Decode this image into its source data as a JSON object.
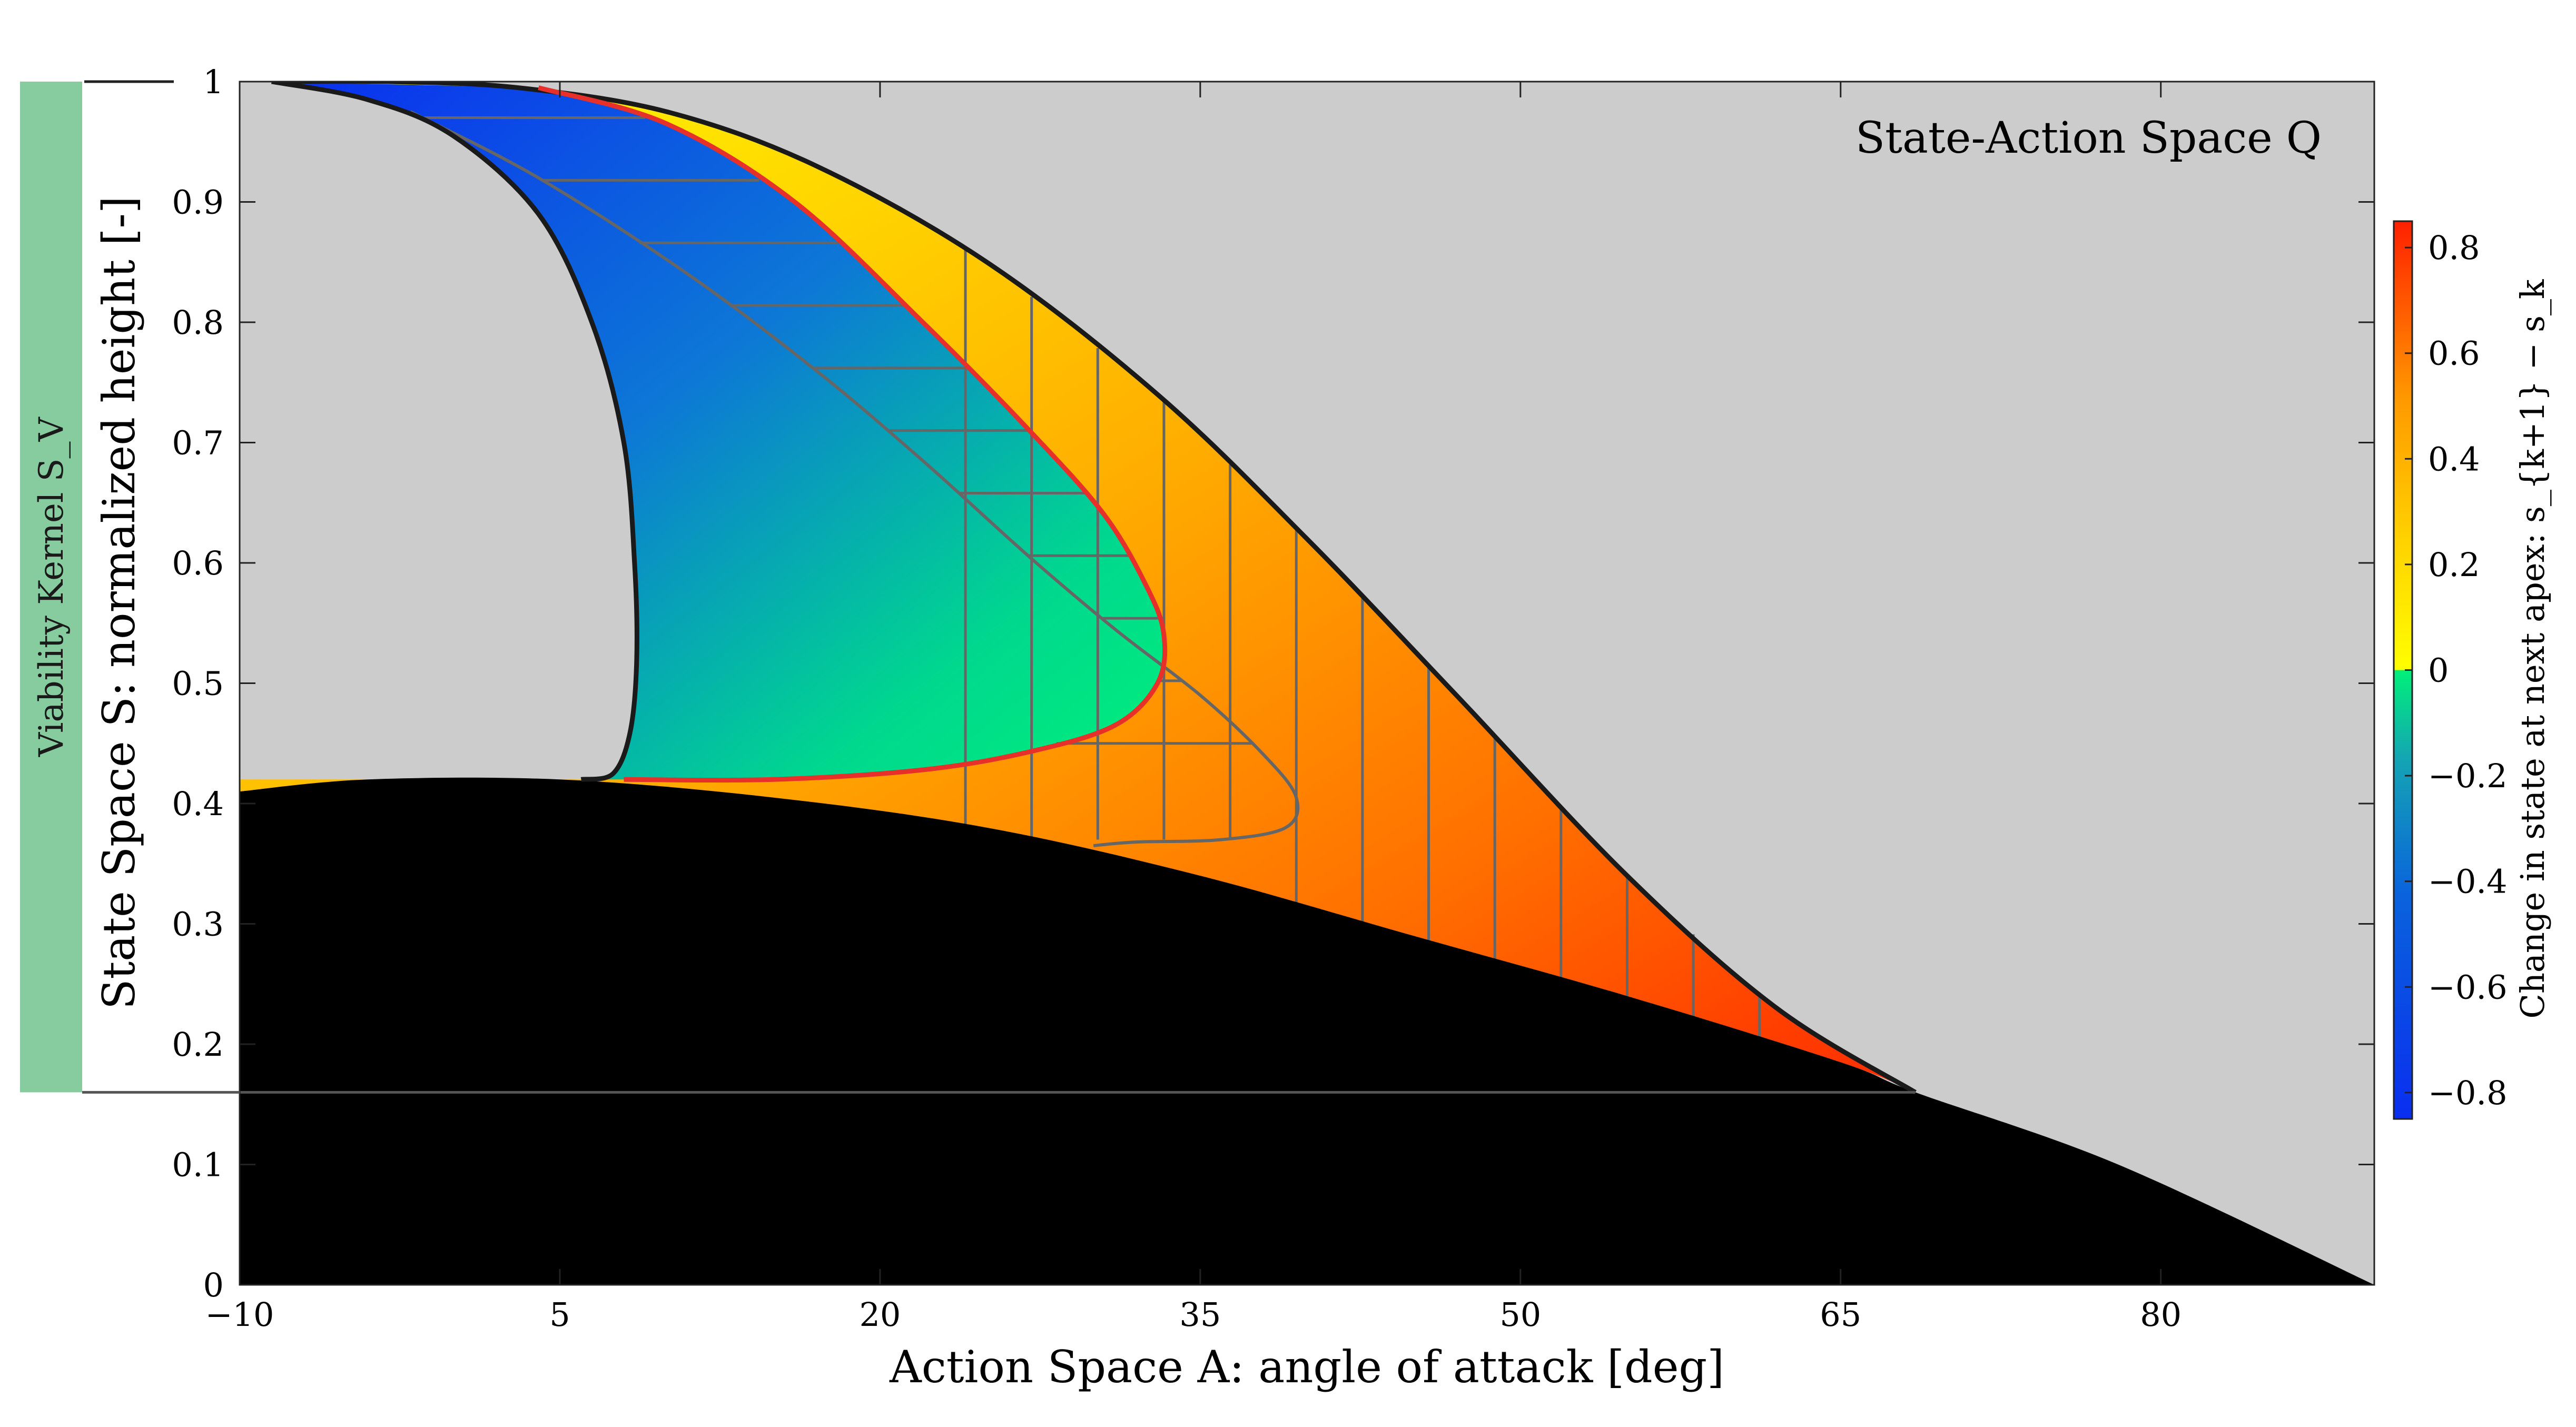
{
  "chart_data": {
    "type": "heatmap",
    "title": "",
    "annotation": "State-Action Space Q",
    "xlabel": "Action Space A: angle of attack [deg]",
    "ylabel": "State Space S: normalized height [-]",
    "xlim": [
      -10,
      90
    ],
    "ylim": [
      0,
      1
    ],
    "xticks": [
      -10,
      5,
      20,
      35,
      50,
      65,
      80
    ],
    "xtick_labels": [
      "−10",
      "5",
      "20",
      "35",
      "50",
      "65",
      "80"
    ],
    "yticks": [
      0,
      0.1,
      0.2,
      0.3,
      0.4,
      0.5,
      0.6,
      0.7,
      0.8,
      0.9,
      1
    ],
    "ytick_labels": [
      "0",
      "0.1",
      "0.2",
      "0.3",
      "0.4",
      "0.5",
      "0.6",
      "0.7",
      "0.8",
      "0.9",
      "1"
    ],
    "grid": false,
    "colorbar": {
      "label": "Change in state at next apex: s_{k+1} − s_k",
      "range": [
        -0.85,
        0.85
      ],
      "ticks": [
        -0.8,
        -0.6,
        -0.4,
        -0.2,
        0,
        0.2,
        0.4,
        0.6,
        0.8
      ],
      "tick_labels": [
        "−0.8",
        "−0.6",
        "−0.4",
        "−0.2",
        "0",
        "0.2",
        "0.4",
        "0.6",
        "0.8"
      ],
      "negative_colors": [
        "#0a2ef0",
        "#0a63dc",
        "#14a4b4",
        "#00e08a"
      ],
      "positive_colors": [
        "#ffff00",
        "#ffd400",
        "#ffa000",
        "#ff6400",
        "#ff2000"
      ]
    },
    "viability_kernel": {
      "label": "Viability Kernel S_V",
      "range": [
        0.16,
        1
      ],
      "color": "#86cc9e"
    },
    "regions": {
      "infeasible_color": "#cccccc",
      "failure_color": "#000000",
      "boundary_color": "#1a1a1a",
      "viable_boundary_color": "#e8302a",
      "hatch_color": "#666666"
    },
    "outer_upper_boundary": [
      [
        -8.5,
        1.0
      ],
      [
        -3,
        1.0
      ],
      [
        3,
        0.995
      ],
      [
        10,
        0.975
      ],
      [
        17,
        0.93
      ],
      [
        25,
        0.85
      ],
      [
        33,
        0.74
      ],
      [
        40,
        0.62
      ],
      [
        47,
        0.49
      ],
      [
        55,
        0.34
      ],
      [
        62,
        0.23
      ],
      [
        68.5,
        0.16
      ]
    ],
    "ground_boundary": [
      [
        -10,
        0.41
      ],
      [
        -4,
        0.42
      ],
      [
        5,
        0.42
      ],
      [
        15,
        0.405
      ],
      [
        25,
        0.38
      ],
      [
        35,
        0.34
      ],
      [
        45,
        0.29
      ],
      [
        55,
        0.24
      ],
      [
        65,
        0.185
      ],
      [
        68.5,
        0.16
      ],
      [
        78,
        0.1
      ],
      [
        90,
        0.0
      ]
    ],
    "inner_left_boundary": [
      [
        -8.5,
        1.0
      ],
      [
        -4,
        0.985
      ],
      [
        0,
        0.955
      ],
      [
        4,
        0.89
      ],
      [
        6.5,
        0.8
      ],
      [
        8,
        0.7
      ],
      [
        8.5,
        0.6
      ],
      [
        8.6,
        0.52
      ],
      [
        8.3,
        0.46
      ],
      [
        7.5,
        0.425
      ],
      [
        6,
        0.42
      ]
    ],
    "viable_negative_boundary": [
      [
        4,
        0.995
      ],
      [
        10,
        0.965
      ],
      [
        16,
        0.9
      ],
      [
        22,
        0.8
      ],
      [
        27,
        0.71
      ],
      [
        30.5,
        0.64
      ],
      [
        32.5,
        0.58
      ],
      [
        33.3,
        0.54
      ],
      [
        33,
        0.5
      ],
      [
        31,
        0.465
      ],
      [
        27,
        0.443
      ],
      [
        22,
        0.428
      ],
      [
        15,
        0.42
      ],
      [
        8,
        0.42
      ]
    ],
    "hatched_region_boundary": [
      [
        -2,
        0.975
      ],
      [
        4,
        0.92
      ],
      [
        11,
        0.84
      ],
      [
        17,
        0.76
      ],
      [
        22,
        0.685
      ],
      [
        27,
        0.605
      ],
      [
        31,
        0.545
      ],
      [
        35,
        0.49
      ],
      [
        38,
        0.44
      ],
      [
        39.5,
        0.405
      ],
      [
        39,
        0.38
      ],
      [
        36,
        0.37
      ],
      [
        32,
        0.368
      ],
      [
        30,
        0.365
      ]
    ]
  }
}
